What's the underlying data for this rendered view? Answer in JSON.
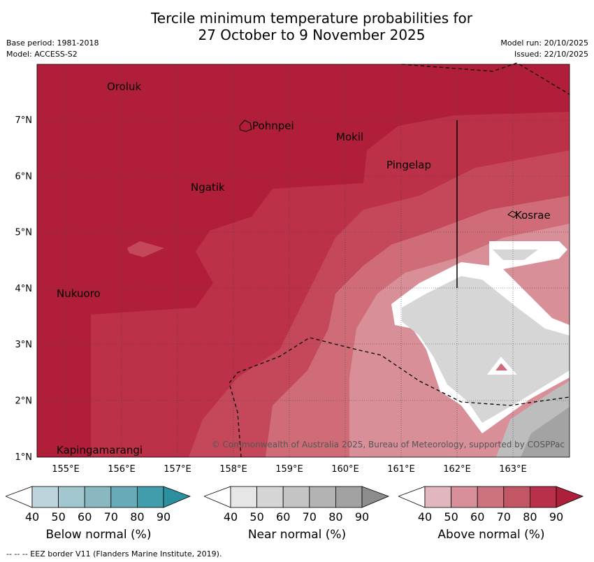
{
  "title_line1": "Tercile minimum temperature probabilities for",
  "title_line2": "27 October to 9 November 2025",
  "meta": {
    "base_period": "Base period: 1981-2018",
    "model": "Model: ACCESS-S2",
    "model_run": "Model run: 20/10/2025",
    "issued": "Issued: 22/10/2025"
  },
  "map": {
    "lon_labels": [
      "155°E",
      "156°E",
      "157°E",
      "158°E",
      "159°E",
      "160°E",
      "161°E",
      "162°E",
      "163°E"
    ],
    "lat_labels": [
      "7°N",
      "6°N",
      "5°N",
      "4°N",
      "3°N",
      "2°N",
      "1°N"
    ],
    "places": [
      {
        "name": "Oroluk",
        "lon": 155.7,
        "lat": 7.6
      },
      {
        "name": "Pohnpei",
        "lon": 158.3,
        "lat": 6.9
      },
      {
        "name": "Mokil",
        "lon": 159.8,
        "lat": 6.7
      },
      {
        "name": "Pingelap",
        "lon": 160.7,
        "lat": 6.2
      },
      {
        "name": "Ngatik",
        "lon": 157.2,
        "lat": 5.8
      },
      {
        "name": "Kosrae",
        "lon": 163.0,
        "lat": 5.3
      },
      {
        "name": "Nukuoro",
        "lon": 154.8,
        "lat": 3.9
      },
      {
        "name": "Kapingamarangi",
        "lon": 154.8,
        "lat": 1.1
      }
    ],
    "copyright": "© Commonwealth of Australia 2025, Bureau of Meteorology, supported by COSPPac"
  },
  "colorbars": [
    {
      "label": "Below normal (%)",
      "ticks": [
        "40",
        "50",
        "60",
        "70",
        "80",
        "90"
      ],
      "colors": [
        "#ffffff",
        "#bcd5dc",
        "#a3c7ce",
        "#8ab8c1",
        "#67abb8",
        "#419dab",
        "#2b8fa0"
      ]
    },
    {
      "label": "Near normal (%)",
      "ticks": [
        "40",
        "50",
        "60",
        "70",
        "80",
        "90"
      ],
      "colors": [
        "#ffffff",
        "#e6e6e6",
        "#d5d5d5",
        "#c4c4c4",
        "#b3b3b3",
        "#a2a2a2",
        "#8c8c8c"
      ]
    },
    {
      "label": "Above normal (%)",
      "ticks": [
        "40",
        "50",
        "60",
        "70",
        "80",
        "90"
      ],
      "colors": [
        "#ffffff",
        "#e2b6bf",
        "#d98f9a",
        "#cc737e",
        "#c25665",
        "#b8304a",
        "#ad1f3a"
      ]
    }
  ],
  "footer": "--  --  -- EEZ border V11 (Flanders Marine Institute, 2019)."
}
